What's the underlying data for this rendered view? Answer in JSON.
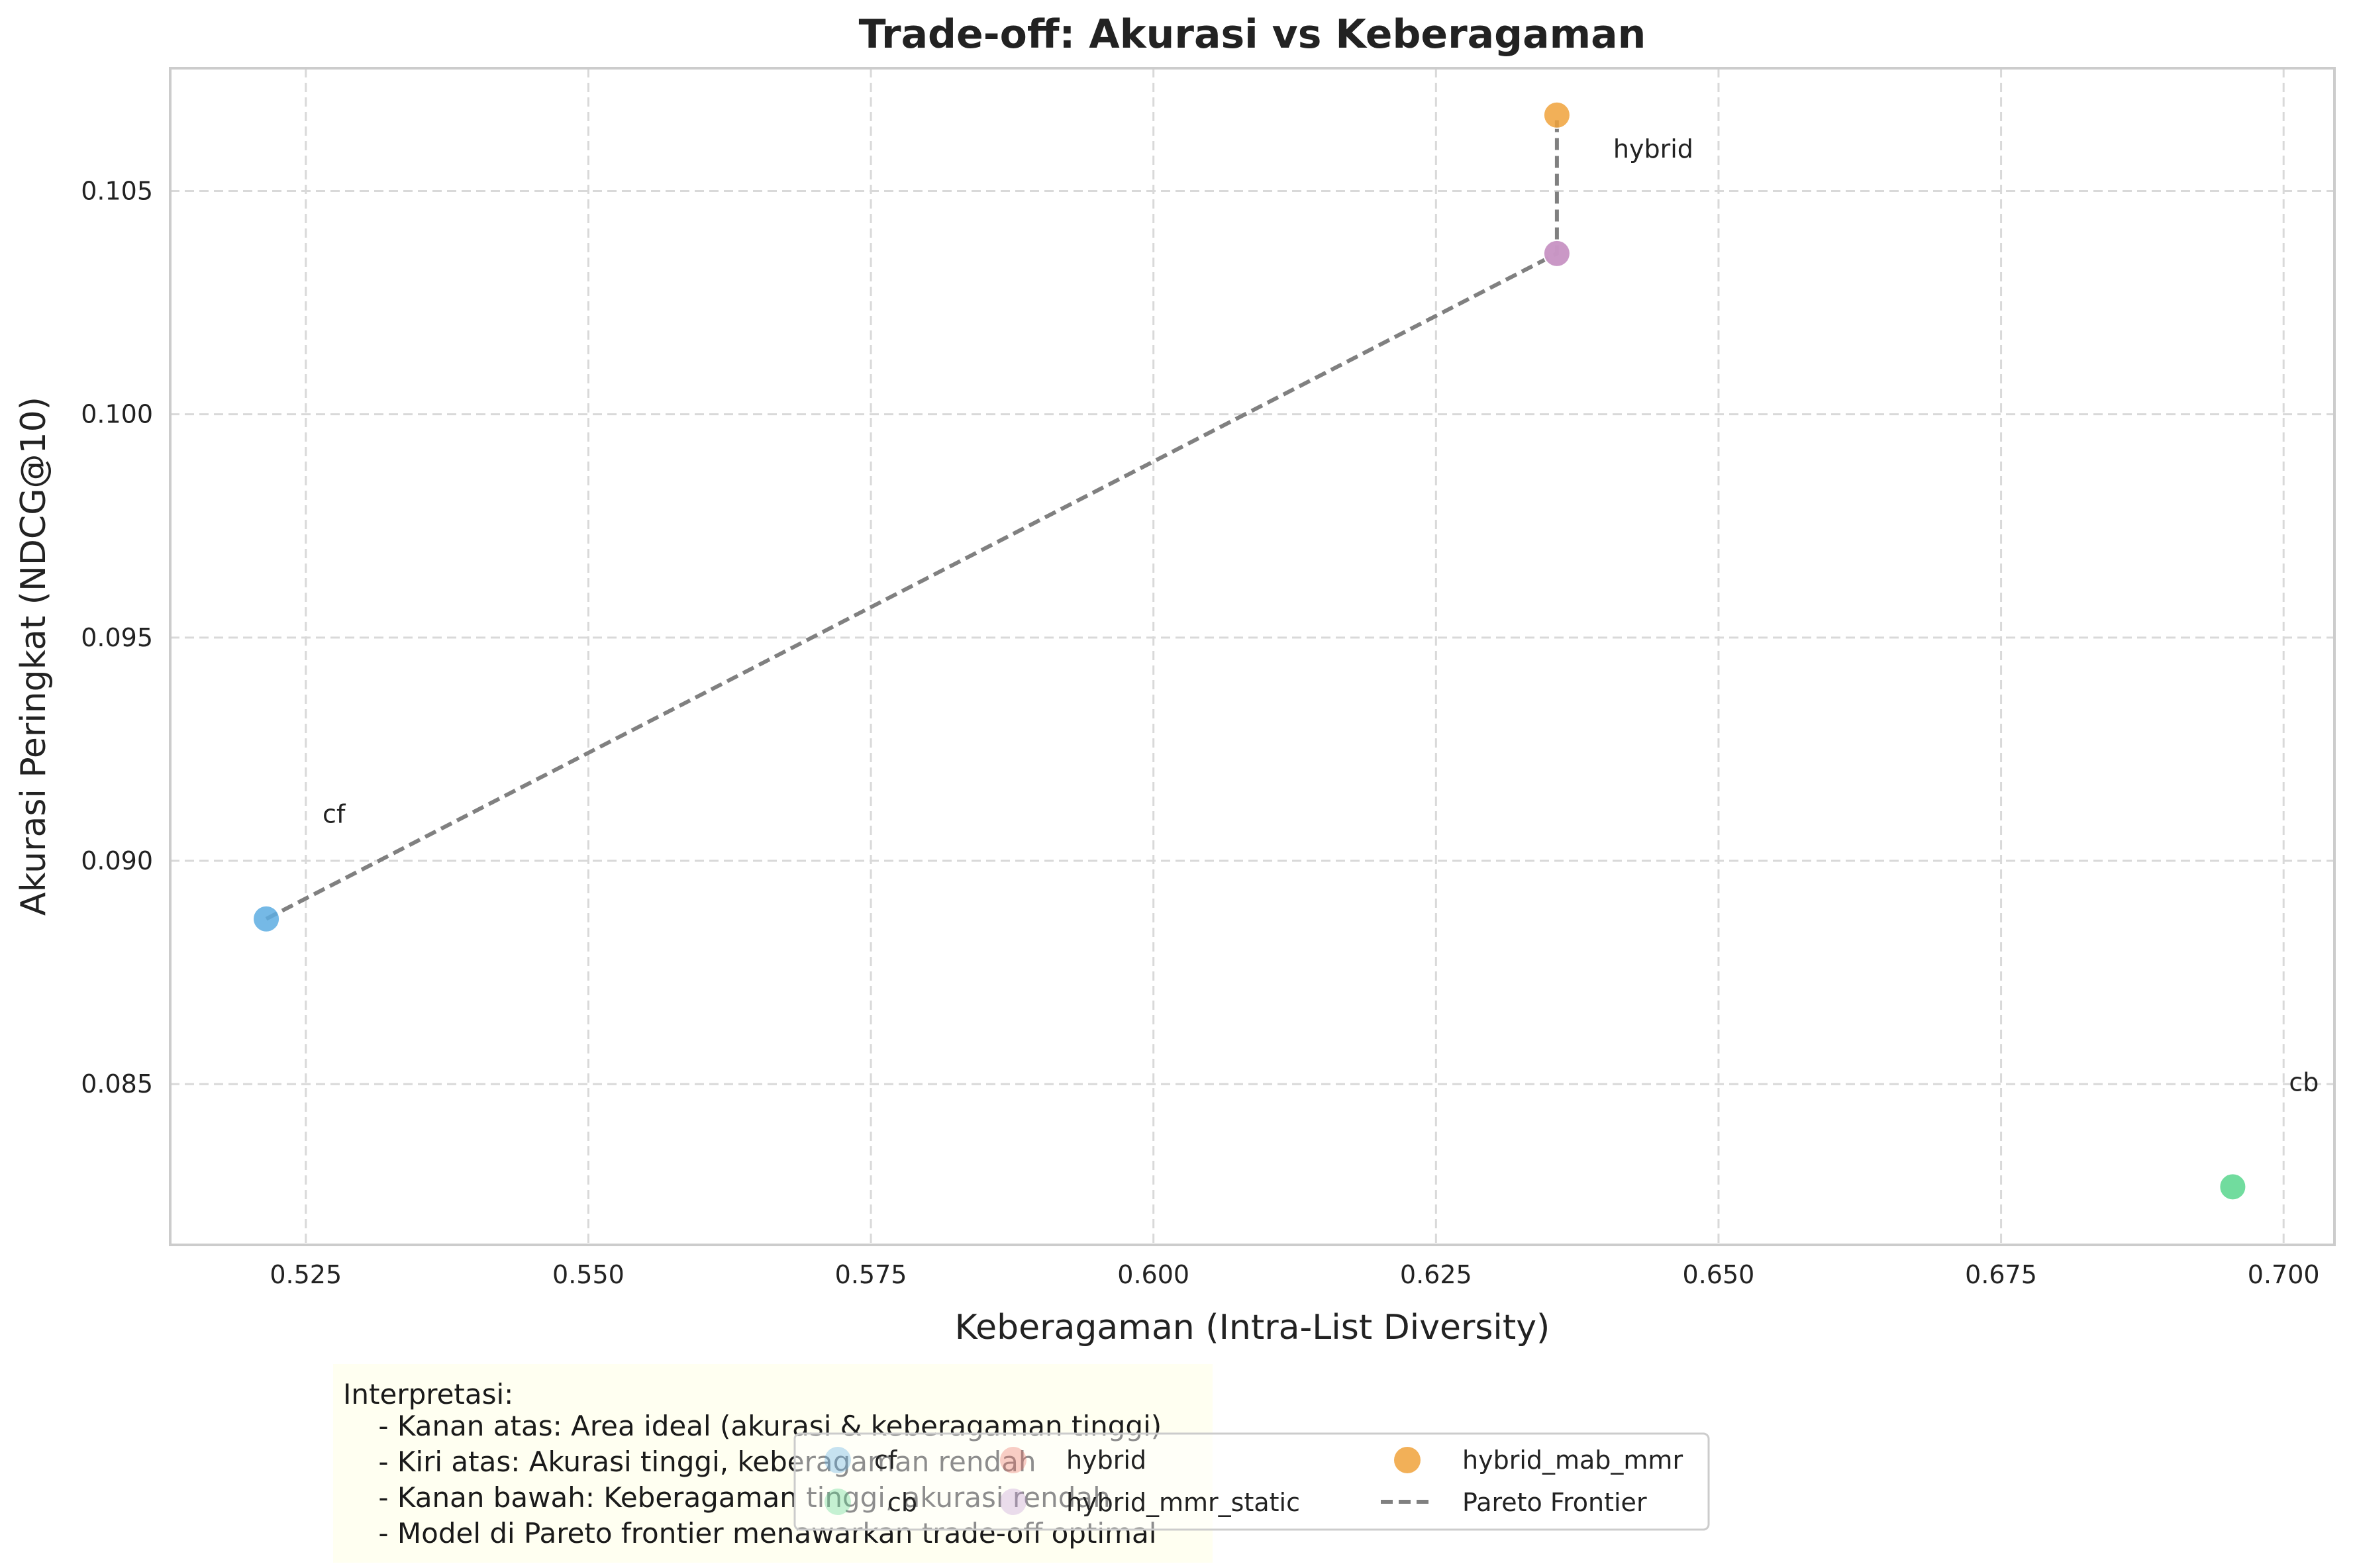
{
  "chart_data": {
    "type": "scatter",
    "title": "Trade-off: Akurasi vs Keberagaman",
    "xlabel": "Keberagaman (Intra-List Diversity)",
    "ylabel": "Akurasi Peringkat (NDCG@10)",
    "xlim": [
      0.513,
      0.7045
    ],
    "ylim": [
      0.0814,
      0.10775
    ],
    "xticks": [
      0.525,
      0.55,
      0.575,
      0.6,
      0.625,
      0.65,
      0.675,
      0.7
    ],
    "xtick_labels": [
      "0.525",
      "0.550",
      "0.575",
      "0.600",
      "0.625",
      "0.650",
      "0.675",
      "0.700"
    ],
    "yticks": [
      0.085,
      0.09,
      0.095,
      0.1,
      0.105
    ],
    "ytick_labels": [
      "0.085",
      "0.090",
      "0.095",
      "0.100",
      "0.105"
    ],
    "grid": true,
    "series": [
      {
        "name": "cf",
        "x": 0.5215,
        "y": 0.0887,
        "color": "#5dade2"
      },
      {
        "name": "hybrid",
        "x": 0.6357,
        "y": 0.1036,
        "color": "#ec7063"
      },
      {
        "name": "cb",
        "x": 0.6955,
        "y": 0.0827,
        "color": "#58d68d"
      },
      {
        "name": "hybrid_mmr_static",
        "x": 0.6357,
        "y": 0.1036,
        "color": "#c39bd3"
      },
      {
        "name": "hybrid_mab_mmr",
        "x": 0.6357,
        "y": 0.1067,
        "color": "#f0a23b"
      }
    ],
    "annotations": [
      {
        "text": "cf",
        "x": 0.5215,
        "y": 0.0887
      },
      {
        "text": "hybrid",
        "x": 0.6357,
        "y": 0.1036
      },
      {
        "text": "cb",
        "x": 0.6955,
        "y": 0.0827
      }
    ],
    "pareto_frontier": {
      "name": "Pareto Frontier",
      "points": [
        [
          0.5215,
          0.0887
        ],
        [
          0.6357,
          0.1036
        ],
        [
          0.6357,
          0.1067
        ]
      ],
      "color": "#808080"
    },
    "legend_position": "bottom-center",
    "interpretation_lines": [
      "Interpretasi:",
      "    - Kanan atas: Area ideal (akurasi & keberagaman tinggi)",
      "    - Kiri atas: Akurasi tinggi, keberagaman rendah",
      "    - Kanan bawah: Keberagaman tinggi, akurasi rendah",
      "    - Model di Pareto frontier menawarkan trade-off optimal"
    ],
    "interpretation_bg": "#fffff0"
  }
}
